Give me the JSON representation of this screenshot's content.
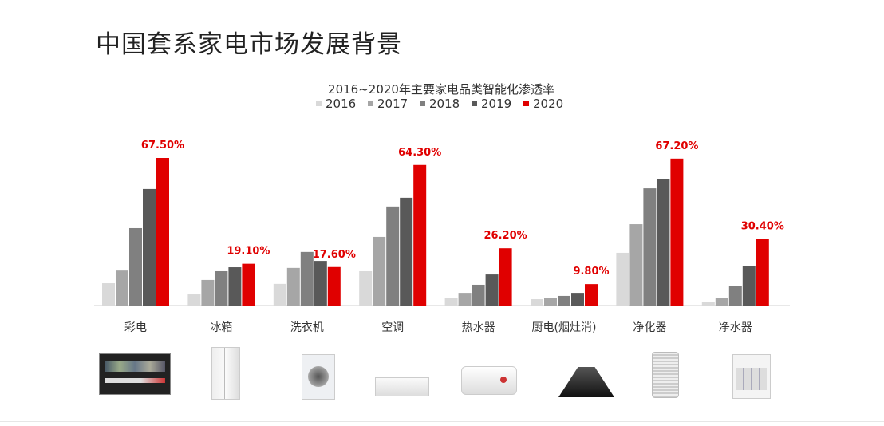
{
  "page": {
    "title": "中国套系家电市场发展背景"
  },
  "chart_data": {
    "type": "bar",
    "title": "2016~2020年主要家电品类智能化渗透率",
    "categories": [
      "彩电",
      "冰箱",
      "洗衣机",
      "空调",
      "热水器",
      "厨电(烟灶消)",
      "净化器",
      "净水器"
    ],
    "series": [
      {
        "name": "2016",
        "color": "#d9d9d9",
        "values": [
          10.2,
          5.1,
          9.9,
          15.7,
          3.6,
          2.9,
          24.1,
          1.8
        ]
      },
      {
        "name": "2017",
        "color": "#a6a6a6",
        "values": [
          16.0,
          11.7,
          17.2,
          31.4,
          5.8,
          3.6,
          37.2,
          3.6
        ]
      },
      {
        "name": "2018",
        "color": "#808080",
        "values": [
          35.4,
          15.7,
          24.5,
          45.3,
          9.5,
          4.4,
          53.6,
          8.8
        ]
      },
      {
        "name": "2019",
        "color": "#595959",
        "values": [
          53.3,
          17.5,
          20.4,
          49.3,
          14.2,
          5.8,
          58.0,
          17.9
        ]
      },
      {
        "name": "2020",
        "color": "#e00000",
        "values": [
          67.5,
          19.1,
          17.6,
          64.3,
          26.2,
          9.8,
          67.2,
          30.4
        ]
      }
    ],
    "data_labels": [
      "67.50%",
      "19.10%",
      "17.60%",
      "64.30%",
      "26.20%",
      "9.80%",
      "67.20%",
      "30.40%"
    ],
    "data_label_color": "#e00000",
    "ylim": [
      0,
      70
    ],
    "grid": false,
    "legend": "top",
    "product_images": [
      "tv",
      "refrigerator",
      "washing-machine",
      "air-conditioner",
      "water-heater",
      "range-hood",
      "air-purifier",
      "water-purifier"
    ]
  }
}
